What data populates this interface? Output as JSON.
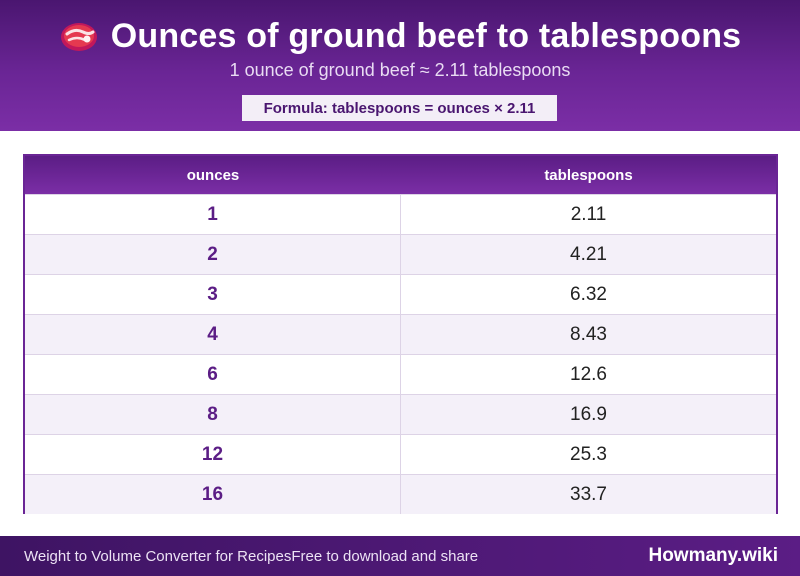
{
  "header": {
    "icon": "steak-icon",
    "title": "Ounces of ground beef to tablespoons",
    "subtitle": "1 ounce of ground beef ≈ 2.11 tablespoons",
    "formula": "Formula: tablespoons = ounces × 2.11"
  },
  "table": {
    "columns": [
      "ounces",
      "tablespoons"
    ],
    "rows": [
      {
        "ounces": "1",
        "tablespoons": "2.11"
      },
      {
        "ounces": "2",
        "tablespoons": "4.21"
      },
      {
        "ounces": "3",
        "tablespoons": "6.32"
      },
      {
        "ounces": "4",
        "tablespoons": "8.43"
      },
      {
        "ounces": "6",
        "tablespoons": "12.6"
      },
      {
        "ounces": "8",
        "tablespoons": "16.9"
      },
      {
        "ounces": "12",
        "tablespoons": "25.3"
      },
      {
        "ounces": "16",
        "tablespoons": "33.7"
      }
    ]
  },
  "footer": {
    "left_text": "Weight to Volume Converter for RecipesFree to download and share",
    "brand": "Howmany.wiki"
  },
  "colors": {
    "header_purple": "#6a2595",
    "dark_purple": "#4a1670",
    "row_alt": "#f4f0f9"
  }
}
